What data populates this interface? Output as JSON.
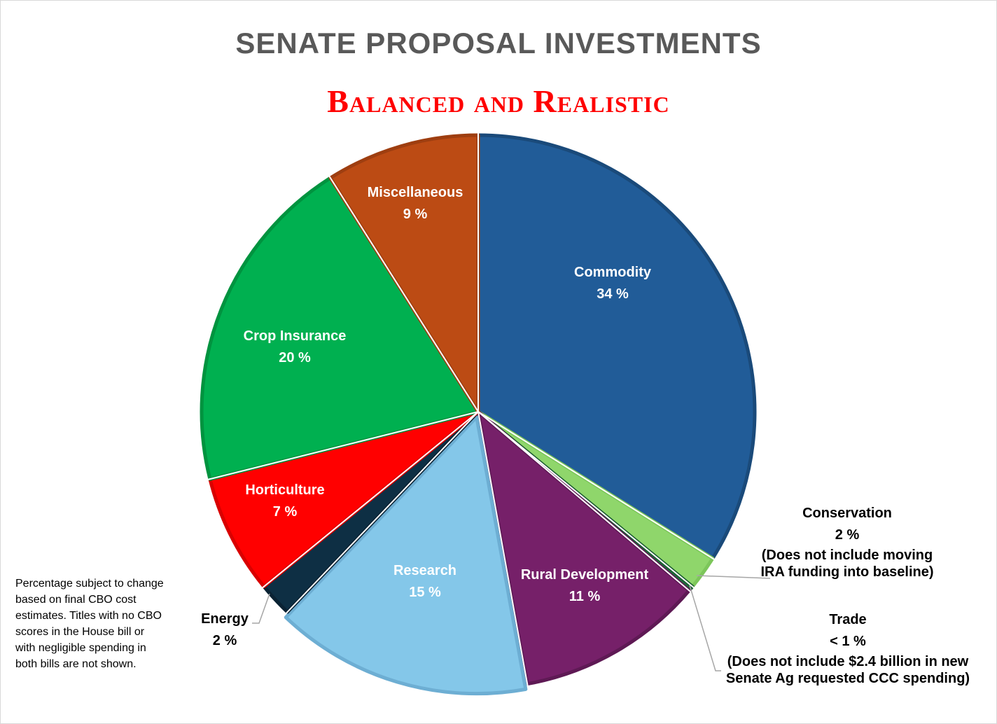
{
  "chart_data": {
    "type": "pie",
    "title": "SENATE PROPOSAL INVESTMENTS",
    "subtitle": "Balanced and Realistic",
    "slices": [
      {
        "label": "Commodity",
        "value": 34,
        "value_text": "34 %",
        "color": "#215c98",
        "edge": "#1a4a7a"
      },
      {
        "label": "Conservation",
        "value": 2,
        "value_text": "2 %",
        "note": [
          "(Does not include moving",
          "IRA funding into baseline)"
        ],
        "color": "#8fd66b",
        "edge": "#7cc65a"
      },
      {
        "label": "Trade",
        "value": 0.3,
        "value_text": "< 1 %",
        "note": [
          "(Does not include $2.4 billion in new",
          "Senate Ag requested CCC spending)"
        ],
        "color": "#1f6b3a",
        "edge": "#1a5a30"
      },
      {
        "label": "Rural Development",
        "value": 11,
        "value_text": "11 %",
        "color": "#762069",
        "edge": "#5e1954"
      },
      {
        "label": "Research",
        "value": 15,
        "value_text": "15 %",
        "color": "#84c7e9",
        "edge": "#6daed3"
      },
      {
        "label": "Energy",
        "value": 2,
        "value_text": "2 %",
        "color": "#0e2f44",
        "edge": "#0a2233"
      },
      {
        "label": "Horticulture",
        "value": 7,
        "value_text": "7 %",
        "color": "#ff0000",
        "edge": "#d90000"
      },
      {
        "label": "Crop Insurance",
        "value": 20,
        "value_text": "20 %",
        "color": "#00b050",
        "edge": "#00933f"
      },
      {
        "label": "Miscellaneous",
        "value": 9,
        "value_text": "9 %",
        "color": "#bc4b14",
        "edge": "#9e3e10"
      }
    ]
  },
  "footnote": "Percentage subject to change based on final CBO cost estimates. Titles with no CBO scores in the House bill or with negligible spending in both bills are not shown."
}
